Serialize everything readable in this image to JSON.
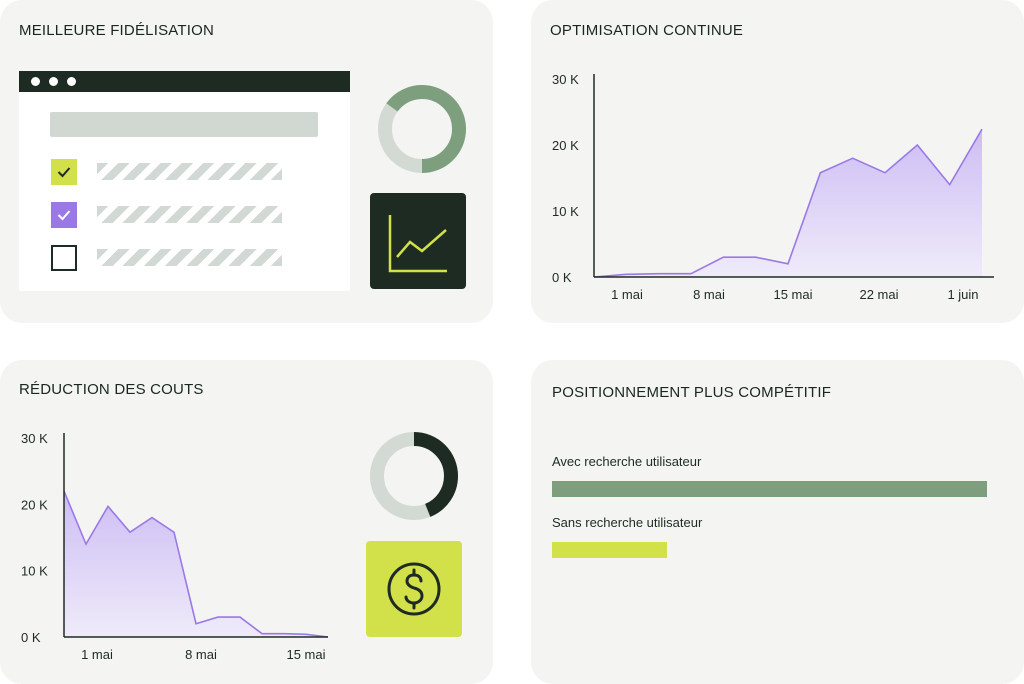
{
  "cards": {
    "retention": {
      "title": "MEILLEURE FIDÉLISATION",
      "checklist": [
        {
          "checked": true,
          "color": "#d2e04a"
        },
        {
          "checked": true,
          "color": "#9a79e6"
        },
        {
          "checked": false,
          "color": "#ffffff"
        }
      ],
      "donut_icon": "donut-chart-icon",
      "tile_icon": "line-chart-icon"
    },
    "optimization": {
      "title": "OPTIMISATION CONTINUE"
    },
    "cost_reduction": {
      "title": "RÉDUCTION DES COUTS",
      "donut_icon": "donut-chart-icon",
      "tile_icon": "dollar-icon"
    },
    "positioning": {
      "title": "POSITIONNEMENT PLUS COMPÉTITIF"
    }
  },
  "colors": {
    "dark": "#1e2b23",
    "lime": "#d2e04a",
    "purple": "#9a79e6",
    "green": "#7d9f7e",
    "light_green": "#d3d9d3",
    "area_fill": "#d9cff5"
  },
  "chart_data": [
    {
      "type": "area",
      "yticks": [
        "0 K",
        "10 K",
        "20 K",
        "30 K"
      ],
      "ylim": [
        0,
        30000
      ],
      "xticks": [
        "1 mai",
        "8 mai",
        "15 mai",
        "22 mai",
        "1 juin"
      ],
      "x": [
        0,
        1,
        2,
        3,
        4,
        5,
        6,
        7,
        8,
        9,
        10,
        11,
        12
      ],
      "series": [
        {
          "values": [
            0,
            400,
            500,
            500,
            3000,
            3000,
            2000,
            15800,
            18000,
            15800,
            20000,
            14000,
            22400
          ]
        }
      ]
    },
    {
      "type": "area",
      "yticks": [
        "0 K",
        "10 K",
        "20 K",
        "30 K"
      ],
      "ylim": [
        0,
        30000
      ],
      "xticks": [
        "1 mai",
        "8 mai",
        "15 mai"
      ],
      "x": [
        0,
        1,
        2,
        3,
        4,
        5,
        6,
        7,
        8,
        9,
        10,
        11,
        12
      ],
      "series": [
        {
          "values": [
            22000,
            14000,
            19700,
            15800,
            18000,
            15800,
            2000,
            3000,
            3000,
            500,
            500,
            400,
            0
          ]
        }
      ]
    },
    {
      "type": "bar",
      "categories": [
        "Avec recherche utilisateur",
        "Sans recherche utilisateur"
      ],
      "values": [
        100,
        26.5
      ],
      "colors": [
        "#7d9f7e",
        "#d2e04a"
      ]
    }
  ]
}
